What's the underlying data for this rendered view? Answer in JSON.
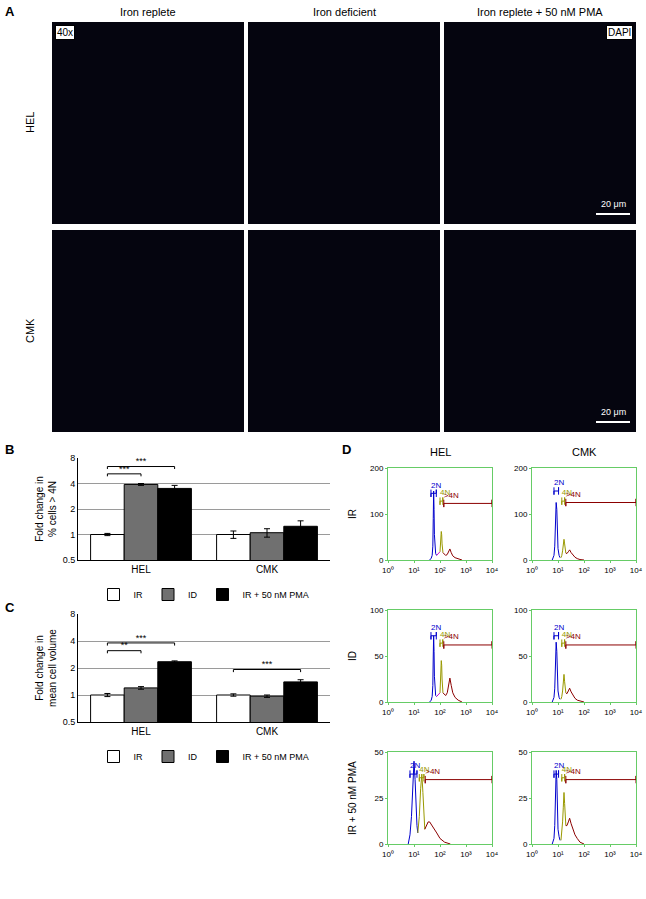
{
  "panel_a": {
    "label": "A",
    "magnification": "40x",
    "stain": "DAPI",
    "columns": [
      "Iron replete",
      "Iron deficient",
      "Iron replete + 50 nM PMA"
    ],
    "rows": [
      "HEL",
      "CMK"
    ],
    "scale_bar": "20 μm"
  },
  "chart_data": [
    {
      "label": "B",
      "type": "bar",
      "categories": [
        "HEL",
        "CMK"
      ],
      "y_label": [
        "Fold change in",
        "% cells > 4N"
      ],
      "log": "y",
      "ylim": [
        0.5,
        8
      ],
      "yticks": [
        0.5,
        1,
        2,
        4,
        8
      ],
      "grid": true,
      "legend": "bottom",
      "series": [
        {
          "name": "IR",
          "color": "#ffffff",
          "values": [
            1,
            1
          ],
          "errors": [
            0.03,
            0.1
          ]
        },
        {
          "name": "ID",
          "color": "#707070",
          "values": [
            3.9,
            1.05
          ],
          "errors": [
            0.1,
            0.12
          ]
        },
        {
          "name": "IR + 50 nM PMA",
          "color": "#000000",
          "values": [
            3.5,
            1.25
          ],
          "errors": [
            0.3,
            0.2
          ]
        }
      ],
      "significance": [
        {
          "category": "HEL",
          "from": "IR",
          "to": "ID",
          "label": "***"
        },
        {
          "category": "HEL",
          "from": "IR",
          "to": "IR + 50 nM PMA",
          "label": "***"
        }
      ]
    },
    {
      "label": "C",
      "type": "bar",
      "categories": [
        "HEL",
        "CMK"
      ],
      "y_label": [
        "Fold change in",
        "mean cell volume"
      ],
      "log": "y",
      "ylim": [
        0.5,
        8
      ],
      "yticks": [
        0.5,
        1,
        2,
        4,
        8
      ],
      "grid": true,
      "legend": "bottom",
      "series": [
        {
          "name": "IR",
          "color": "#ffffff",
          "values": [
            1,
            1
          ],
          "errors": [
            0.04,
            0.03
          ]
        },
        {
          "name": "ID",
          "color": "#707070",
          "values": [
            1.2,
            0.97
          ],
          "errors": [
            0.04,
            0.03
          ]
        },
        {
          "name": "IR + 50 nM PMA",
          "color": "#000000",
          "values": [
            2.35,
            1.4
          ],
          "errors": [
            0.05,
            0.08
          ]
        }
      ],
      "significance": [
        {
          "category": "HEL",
          "from": "IR",
          "to": "ID",
          "label": "**"
        },
        {
          "category": "HEL",
          "from": "IR",
          "to": "IR + 50 nM PMA",
          "label": "***"
        },
        {
          "category": "CMK",
          "from": "IR",
          "to": "IR + 50 nM PMA",
          "label": "***"
        }
      ]
    },
    {
      "label": "D",
      "type": "line",
      "columns": [
        "HEL",
        "CMK"
      ],
      "rows": [
        "IR",
        "ID",
        "IR + 50 nM PMA"
      ],
      "log": "x",
      "xlim": [
        1,
        10000
      ],
      "xticks": [
        {
          "value": 1,
          "label": "10⁰"
        },
        {
          "value": 10,
          "label": "10¹"
        },
        {
          "value": 100,
          "label": "10²"
        },
        {
          "value": 1000,
          "label": "10³"
        },
        {
          "value": 10000,
          "label": "10⁴"
        }
      ],
      "panels": [
        {
          "ylim": [
            0,
            200
          ],
          "yticks": [
            0,
            100,
            200
          ],
          "series": [
            {
              "color": "#0000cc",
              "x": [
                40,
                46,
                50,
                53,
                55,
                57,
                59,
                61,
                64,
                68,
                74
              ],
              "values": [
                0,
                4,
                10,
                30,
                90,
                150,
                110,
                55,
                25,
                14,
                10
              ]
            },
            {
              "color": "#cc00cc",
              "x": [
                74,
                80,
                87,
                94,
                100
              ],
              "values": [
                10,
                12,
                14,
                16,
                18
              ]
            },
            {
              "color": "#999900",
              "x": [
                100,
                104,
                108,
                112,
                116,
                120,
                125,
                130
              ],
              "values": [
                18,
                30,
                50,
                62,
                55,
                35,
                22,
                16
              ]
            },
            {
              "color": "#8b0000",
              "x": [
                130,
                145,
                165,
                190,
                215,
                240,
                270,
                310,
                380,
                500,
                700
              ],
              "values": [
                16,
                12,
                10,
                12,
                18,
                24,
                16,
                9,
                5,
                2,
                0
              ]
            }
          ],
          "gates": [
            {
              "label": "2N",
              "from": 45,
              "to": 72,
              "y": 145,
              "color": "#0000cc"
            },
            {
              "label": "4N",
              "from": 100,
              "to": 128,
              "y": 128,
              "color": "#999900"
            },
            {
              "label": ">4N",
              "from": 140,
              "to": 10000,
              "y": 123,
              "color": "#8b0000"
            }
          ]
        },
        {
          "ylim": [
            0,
            200
          ],
          "yticks": [
            0,
            100,
            200
          ],
          "series": [
            {
              "color": "#0000cc",
              "x": [
                6,
                7,
                7.5,
                8,
                8.5,
                9,
                9.5,
                10,
                11,
                12
              ],
              "values": [
                0,
                10,
                30,
                80,
                125,
                110,
                60,
                25,
                10,
                5
              ]
            },
            {
              "color": "#999900",
              "x": [
                13,
                14,
                15,
                16,
                17,
                18,
                19,
                20
              ],
              "values": [
                5,
                10,
                20,
                35,
                45,
                35,
                20,
                15
              ]
            },
            {
              "color": "#8b0000",
              "x": [
                20,
                22,
                25,
                28,
                32,
                36,
                40,
                45,
                55,
                70,
                100
              ],
              "values": [
                15,
                14,
                18,
                22,
                16,
                12,
                10,
                6,
                3,
                1,
                0
              ]
            }
          ],
          "gates": [
            {
              "label": "2N",
              "from": 7,
              "to": 10.5,
              "y": 150,
              "color": "#0000cc"
            },
            {
              "label": "4N",
              "from": 14,
              "to": 18,
              "y": 128,
              "color": "#999900"
            },
            {
              "label": ">4N",
              "from": 20,
              "to": 10000,
              "y": 125,
              "color": "#8b0000"
            }
          ]
        },
        {
          "ylim": [
            0,
            100
          ],
          "yticks": [
            0,
            50,
            100
          ],
          "series": [
            {
              "color": "#0000cc",
              "x": [
                40,
                46,
                50,
                53,
                55,
                57,
                59,
                61,
                64,
                68,
                74
              ],
              "values": [
                0,
                2,
                6,
                18,
                50,
                72,
                55,
                28,
                12,
                7,
                6
              ]
            },
            {
              "color": "#cc00cc",
              "x": [
                74,
                80,
                87,
                94,
                100
              ],
              "values": [
                6,
                7,
                8,
                9,
                10
              ]
            },
            {
              "color": "#999900",
              "x": [
                100,
                104,
                108,
                112,
                116,
                120,
                125,
                130
              ],
              "values": [
                10,
                18,
                30,
                45,
                40,
                25,
                14,
                10
              ]
            },
            {
              "color": "#8b0000",
              "x": [
                130,
                145,
                165,
                190,
                215,
                240,
                270,
                310,
                380,
                500,
                700
              ],
              "values": [
                10,
                8,
                7,
                10,
                18,
                26,
                18,
                10,
                5,
                2,
                0
              ]
            }
          ],
          "gates": [
            {
              "label": "2N",
              "from": 45,
              "to": 72,
              "y": 72,
              "color": "#0000cc"
            },
            {
              "label": "4N",
              "from": 100,
              "to": 128,
              "y": 64,
              "color": "#999900"
            },
            {
              "label": ">4N",
              "from": 140,
              "to": 10000,
              "y": 62,
              "color": "#8b0000"
            }
          ]
        },
        {
          "ylim": [
            0,
            100
          ],
          "yticks": [
            0,
            50,
            100
          ],
          "series": [
            {
              "color": "#0000cc",
              "x": [
                6,
                7,
                7.5,
                8,
                8.5,
                9,
                9.5,
                10,
                11,
                12
              ],
              "values": [
                0,
                5,
                15,
                40,
                65,
                55,
                30,
                12,
                5,
                3
              ]
            },
            {
              "color": "#999900",
              "x": [
                13,
                14,
                15,
                16,
                17,
                18,
                19,
                20
              ],
              "values": [
                3,
                6,
                12,
                22,
                30,
                22,
                14,
                10
              ]
            },
            {
              "color": "#8b0000",
              "x": [
                20,
                22,
                25,
                28,
                32,
                36,
                40,
                45,
                55,
                70,
                100
              ],
              "values": [
                10,
                9,
                12,
                15,
                11,
                8,
                7,
                4,
                2,
                1,
                0
              ]
            }
          ],
          "gates": [
            {
              "label": "2N",
              "from": 7,
              "to": 10.5,
              "y": 72,
              "color": "#0000cc"
            },
            {
              "label": "4N",
              "from": 14,
              "to": 18,
              "y": 64,
              "color": "#999900"
            },
            {
              "label": ">4N",
              "from": 20,
              "to": 10000,
              "y": 62,
              "color": "#8b0000"
            }
          ]
        },
        {
          "ylim": [
            0,
            50
          ],
          "yticks": [
            0,
            25,
            50
          ],
          "series": [
            {
              "color": "#0000cc",
              "x": [
                6,
                7,
                8,
                9,
                10,
                11,
                12,
                13,
                14
              ],
              "values": [
                0,
                5,
                15,
                35,
                45,
                35,
                20,
                10,
                6
              ]
            },
            {
              "color": "#999900",
              "x": [
                14,
                16,
                18,
                20,
                22,
                24,
                26
              ],
              "values": [
                6,
                15,
                30,
                38,
                28,
                15,
                8
              ]
            },
            {
              "color": "#8b0000",
              "x": [
                26,
                30,
                35,
                40,
                50,
                60,
                75,
                100,
                150,
                250
              ],
              "values": [
                8,
                10,
                12,
                12,
                10,
                8,
                6,
                3,
                1,
                0
              ]
            }
          ],
          "gates": [
            {
              "label": "2N",
              "from": 7,
              "to": 13,
              "y": 38,
              "color": "#0000cc"
            },
            {
              "label": "4N",
              "from": 16,
              "to": 24,
              "y": 36,
              "color": "#999900"
            },
            {
              "label": ">4N",
              "from": 27,
              "to": 10000,
              "y": 35,
              "color": "#8b0000"
            }
          ]
        },
        {
          "ylim": [
            0,
            50
          ],
          "yticks": [
            0,
            25,
            50
          ],
          "series": [
            {
              "color": "#0000cc",
              "x": [
                6,
                7,
                7.5,
                8,
                8.5,
                9,
                9.5,
                10,
                11,
                12
              ],
              "values": [
                0,
                3,
                10,
                25,
                40,
                35,
                20,
                8,
                4,
                2
              ]
            },
            {
              "color": "#999900",
              "x": [
                13,
                14,
                15,
                16,
                17,
                18,
                19,
                20
              ],
              "values": [
                2,
                6,
                12,
                20,
                28,
                22,
                14,
                10
              ]
            },
            {
              "color": "#8b0000",
              "x": [
                20,
                22,
                25,
                28,
                32,
                36,
                40,
                45,
                55,
                70,
                100
              ],
              "values": [
                10,
                10,
                12,
                14,
                11,
                9,
                7,
                5,
                3,
                1,
                0
              ]
            }
          ],
          "gates": [
            {
              "label": "2N",
              "from": 7,
              "to": 10.5,
              "y": 38,
              "color": "#0000cc"
            },
            {
              "label": "4N",
              "from": 14,
              "to": 18,
              "y": 36,
              "color": "#999900"
            },
            {
              "label": ">4N",
              "from": 20,
              "to": 10000,
              "y": 35,
              "color": "#8b0000"
            }
          ]
        }
      ]
    }
  ]
}
